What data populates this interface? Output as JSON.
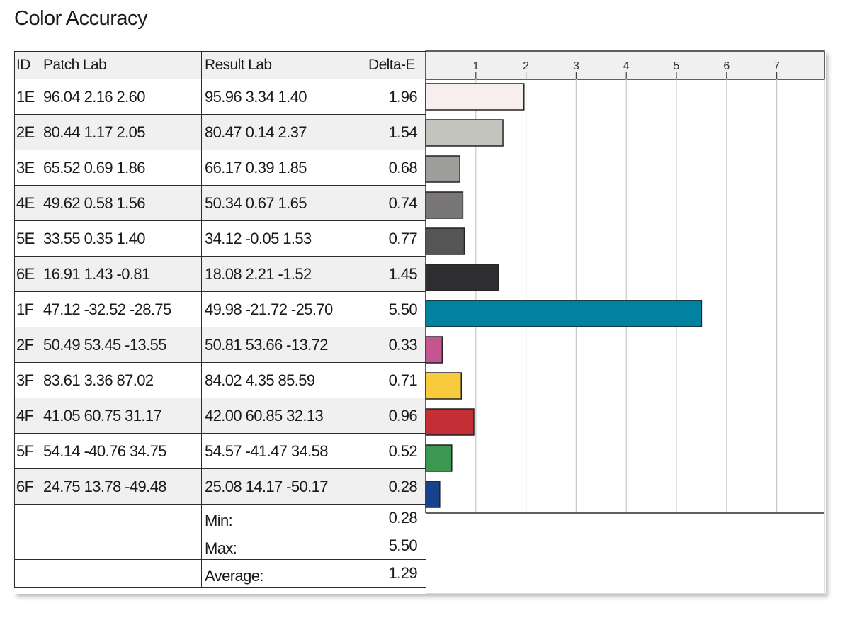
{
  "title": "Color Accuracy",
  "colors": {
    "grid": "#c8c8c8",
    "border": "#2c2c2c",
    "bar_border": "#222222"
  },
  "chart_data": {
    "type": "table",
    "columns": [
      "ID",
      "Patch Lab",
      "Result Lab",
      "Delta-E"
    ],
    "xaxis_ticks": [
      "1",
      "2",
      "3",
      "4",
      "5",
      "6",
      "7"
    ],
    "xlim": [
      0,
      8
    ],
    "rows": [
      {
        "id": "1E",
        "patch": "96.04  2.16  2.60",
        "result": "95.96  3.34  1.40",
        "delta_e": "1.96",
        "value": 1.96,
        "color": "#f7eeee"
      },
      {
        "id": "2E",
        "patch": "80.44  1.17  2.05",
        "result": "80.47  0.14  2.37",
        "delta_e": "1.54",
        "value": 1.54,
        "color": "#c4c4bf"
      },
      {
        "id": "3E",
        "patch": "65.52  0.69  1.86",
        "result": "66.17  0.39  1.85",
        "delta_e": "0.68",
        "value": 0.68,
        "color": "#9e9e9a"
      },
      {
        "id": "4E",
        "patch": "49.62  0.58  1.56",
        "result": "50.34  0.67  1.65",
        "delta_e": "0.74",
        "value": 0.74,
        "color": "#787676"
      },
      {
        "id": "5E",
        "patch": "33.55  0.35  1.40",
        "result": "34.12  -0.05  1.53",
        "delta_e": "0.77",
        "value": 0.77,
        "color": "#555555"
      },
      {
        "id": "6E",
        "patch": "16.91  1.43  -0.81",
        "result": "18.08  2.21  -1.52",
        "delta_e": "1.45",
        "value": 1.45,
        "color": "#2e2e30"
      },
      {
        "id": "1F",
        "patch": "47.12 -32.52 -28.75",
        "result": "49.98 -21.72 -25.70",
        "delta_e": "5.50",
        "value": 5.5,
        "color": "#0082a0"
      },
      {
        "id": "2F",
        "patch": "50.49 53.45 -13.55",
        "result": "50.81 53.66 -13.72",
        "delta_e": "0.33",
        "value": 0.33,
        "color": "#c45590"
      },
      {
        "id": "3F",
        "patch": "83.61  3.36 87.02",
        "result": "84.02  4.35 85.59",
        "delta_e": "0.71",
        "value": 0.71,
        "color": "#f7cb3c"
      },
      {
        "id": "4F",
        "patch": "41.05 60.75 31.17",
        "result": "42.00 60.85 32.13",
        "delta_e": "0.96",
        "value": 0.96,
        "color": "#c42e36"
      },
      {
        "id": "5F",
        "patch": "54.14 -40.76 34.75",
        "result": "54.57 -41.47 34.58",
        "delta_e": "0.52",
        "value": 0.52,
        "color": "#3c9850"
      },
      {
        "id": "6F",
        "patch": "24.75 13.78 -49.48",
        "result": "25.08 14.17 -50.17",
        "delta_e": "0.28",
        "value": 0.28,
        "color": "#18428c"
      }
    ],
    "summary": [
      {
        "label": "Min:",
        "value": "0.28"
      },
      {
        "label": "Max:",
        "value": "5.50"
      },
      {
        "label": "Average:",
        "value": "1.29"
      }
    ]
  }
}
